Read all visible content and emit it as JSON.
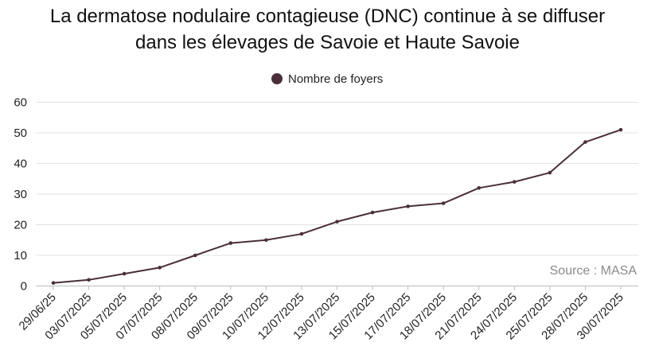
{
  "chart_data": {
    "type": "line",
    "title_line1": "La dermatose nodulaire contagieuse (DNC) continue à se diffuser",
    "title_line2": "dans les élevages de Savoie et Haute Savoie",
    "legend": "Nombre de foyers",
    "source": "Source : MASA",
    "categories": [
      "29/06/25",
      "03/07/2025",
      "05/07/2025",
      "07/07/2025",
      "08/07/2025",
      "09/07/2025",
      "10/07/2025",
      "12/07/2025",
      "13/07/2025",
      "15/07/2025",
      "17/07/2025",
      "18/07/2025",
      "21/07/2025",
      "24/07/2025",
      "25/07/2025",
      "28/07/2025",
      "30/07/2025"
    ],
    "series": [
      {
        "name": "Nombre de foyers",
        "values": [
          1,
          2,
          4,
          6,
          10,
          14,
          15,
          17,
          21,
          24,
          26,
          27,
          32,
          34,
          37,
          47,
          51
        ],
        "color": "#4a2f3a"
      }
    ],
    "ylim": [
      0,
      60
    ],
    "yticks": [
      0,
      10,
      20,
      30,
      40,
      50,
      60
    ],
    "grid": true,
    "legend_position": "top-center",
    "colors": {
      "line": "#4a2f3a",
      "grid": "#e3e3e3",
      "axis": "#bcbcbc"
    }
  }
}
